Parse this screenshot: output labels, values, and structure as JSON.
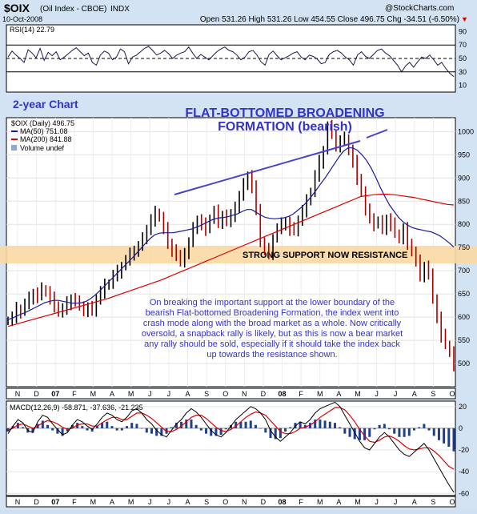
{
  "header": {
    "symbol": "$OIX",
    "name": "(Oil Index - CBOE)",
    "exchange": "INDX",
    "date": "10-Oct-2008",
    "ohlc": "Open 531.26  High 531.26  Low 454.55  Close 496.75  Chg -34.51 (-6.50%)",
    "watermark": "@StockCharts.com",
    "change_down_glyph": "▼"
  },
  "rsi_panel": {
    "legend": "RSI(14) 22.79",
    "levels": [
      70,
      50,
      30
    ],
    "ticks": [
      "90",
      "70",
      "50",
      "30",
      "10"
    ]
  },
  "price_panel": {
    "legend_price": "$OIX (Daily) 496.75",
    "legend_ma50": "MA(50) 751.08",
    "legend_ma200": "MA(200) 841.88",
    "legend_volume": "Volume undef",
    "label_2year": "2-year Chart",
    "title_line1": "FLAT-BOTTOMED BROADENING",
    "title_line2": "FORMATION (bearish)",
    "band_label": "STRONG SUPPORT NOW RESISTANCE",
    "commentary": [
      "On breaking the important support at the lower boundary of the",
      "bearish Flat-bottomed Broadening Formation, the index went into",
      "crash mode along with the broad market as a whole. Now critically",
      "oversold, a snapback rally is likely, but as this is now a bear market",
      "any rally should be sold, especially if it should take the index back",
      "up towards the resistance shown."
    ],
    "y_ticks": [
      "1000",
      "950",
      "900",
      "850",
      "800",
      "750",
      "700",
      "650",
      "600",
      "550",
      "500"
    ],
    "x_ticks": [
      "N",
      "D",
      "07",
      "F",
      "M",
      "A",
      "M",
      "J",
      "J",
      "A",
      "S",
      "O",
      "N",
      "D",
      "08",
      "F",
      "M",
      "A",
      "M",
      "J",
      "J",
      "A",
      "S",
      "O"
    ]
  },
  "macd_panel": {
    "legend": "MACD(12,26,9) -58.871, -37.636, -21.235",
    "y_ticks": [
      "20",
      "0",
      "-20",
      "-40",
      "-60"
    ],
    "x_ticks": [
      "N",
      "D",
      "07",
      "F",
      "M",
      "A",
      "M",
      "J",
      "J",
      "A",
      "S",
      "O",
      "N",
      "D",
      "08",
      "F",
      "M",
      "A",
      "M",
      "J",
      "J",
      "A",
      "S",
      "O"
    ]
  },
  "colors": {
    "price_bars": "#000000",
    "ma50": "#1a1a9a",
    "ma200": "#dd0000",
    "trendline": "#4444cc",
    "annotation_text": "#3333cc",
    "support_band": "#fbd8a3",
    "macd_line": "#000000",
    "macd_signal": "#dd0000",
    "macd_hist": "#1f3f8f",
    "panel_bg": "#ffffff",
    "frame_bg": "#d3e3f4"
  },
  "chart_data": [
    {
      "type": "line",
      "panel": "RSI(14)",
      "ylim": [
        0,
        100
      ],
      "series": [
        {
          "name": "RSI(14)",
          "values": [
            52,
            61,
            55,
            50,
            44,
            63,
            58,
            51,
            65,
            47,
            59,
            54,
            60,
            48,
            52,
            57,
            62,
            66,
            60,
            54,
            58,
            44,
            40,
            55,
            61,
            58,
            48,
            52,
            64,
            60,
            42,
            52,
            55,
            60,
            65,
            68,
            62,
            55,
            58,
            62,
            57,
            50,
            55,
            58,
            60,
            67,
            58,
            50,
            56,
            52,
            48,
            54,
            60,
            64,
            67,
            62,
            60,
            55,
            48,
            52,
            60,
            62,
            55,
            45,
            40,
            56,
            61,
            54,
            48,
            51,
            54,
            58,
            60,
            52,
            48,
            55,
            53,
            49,
            42,
            44,
            56,
            60,
            62,
            58,
            52,
            48,
            40,
            55,
            60,
            53,
            50,
            56,
            62,
            64,
            58,
            54,
            47,
            40,
            30,
            39,
            44,
            37,
            45,
            52,
            50,
            55,
            48,
            40,
            44,
            35,
            28,
            23
          ]
        }
      ]
    },
    {
      "type": "line",
      "panel": "price",
      "ylim": [
        450,
        1030
      ],
      "series": [
        {
          "name": "$OIX (Daily)",
          "values": [
            592,
            600,
            618,
            612,
            628,
            640,
            652,
            645,
            660,
            655,
            640,
            625,
            610,
            618,
            630,
            640,
            632,
            625,
            615,
            620,
            612,
            640,
            655,
            668,
            672,
            690,
            698,
            710,
            722,
            735,
            745,
            752,
            768,
            790,
            810,
            825,
            815,
            790,
            760,
            745,
            730,
            720,
            740,
            760,
            790,
            810,
            800,
            790,
            812,
            828,
            805,
            820,
            805,
            818,
            840,
            860,
            885,
            905,
            880,
            835,
            760,
            745,
            738,
            770,
            790,
            800,
            805,
            790,
            785,
            810,
            830,
            850,
            870,
            905,
            935,
            960,
            1010,
            995,
            970,
            980,
            985,
            960,
            935,
            900,
            870,
            830,
            815,
            800,
            805,
            790,
            812,
            800,
            780,
            770,
            790,
            760,
            740,
            720,
            690,
            710,
            690,
            640,
            600,
            560,
            540,
            525,
            496
          ]
        },
        {
          "name": "MA(50)",
          "values": [
            595,
            598,
            603,
            607,
            611,
            616,
            621,
            626,
            631,
            634,
            636,
            636,
            634,
            632,
            630,
            630,
            631,
            634,
            640,
            648,
            657,
            667,
            677,
            687,
            697,
            707,
            717,
            727,
            738,
            749,
            760,
            770,
            778,
            781,
            782,
            782,
            782,
            784,
            786,
            788,
            790,
            794,
            798,
            803,
            808,
            812,
            814,
            815,
            817,
            820,
            823,
            828,
            832,
            832,
            826,
            820,
            815,
            813,
            812,
            813,
            814,
            817,
            822,
            830,
            838,
            848,
            860,
            873,
            887,
            900,
            915,
            930,
            945,
            958,
            965,
            965,
            960,
            950,
            938,
            922,
            902,
            880,
            860,
            842,
            828,
            815,
            805,
            798,
            793,
            790,
            788,
            786,
            784,
            780,
            775,
            768,
            760,
            751
          ]
        },
        {
          "name": "MA(200)",
          "values": [
            580,
            584,
            588,
            592,
            596,
            600,
            604,
            608,
            612,
            616,
            620,
            624,
            628,
            632,
            636,
            640,
            645,
            650,
            655,
            660,
            665,
            670,
            675,
            680,
            686,
            692,
            698,
            704,
            710,
            716,
            722,
            728,
            734,
            740,
            746,
            752,
            758,
            764,
            770,
            776,
            782,
            788,
            794,
            800,
            806,
            812,
            818,
            824,
            830,
            836,
            842,
            848,
            854,
            860,
            862,
            864,
            865,
            865,
            864,
            862,
            860,
            858,
            855,
            852,
            849,
            846,
            843,
            841.88
          ]
        }
      ]
    },
    {
      "type": "line",
      "panel": "MACD(12,26,9)",
      "ylim": [
        -62,
        25
      ],
      "series": [
        {
          "name": "MACD",
          "values": [
            -5,
            2,
            8,
            5,
            -2,
            -4,
            6,
            12,
            10,
            4,
            -1,
            -6,
            -4,
            3,
            8,
            6,
            2,
            -1,
            4,
            10,
            14,
            12,
            8,
            6,
            10,
            16,
            18,
            14,
            8,
            4,
            -2,
            -6,
            -8,
            -2,
            4,
            8,
            14,
            18,
            15,
            10,
            4,
            -2,
            -6,
            -8,
            -4,
            2,
            8,
            12,
            16,
            20,
            18,
            14,
            8,
            -2,
            -8,
            -12,
            -8,
            -4,
            2,
            6,
            4,
            8,
            14,
            18,
            20,
            22,
            24,
            20,
            12,
            4,
            -4,
            -12,
            -18,
            -20,
            -14,
            -8,
            -4,
            -8,
            -14,
            -20,
            -24,
            -26,
            -22,
            -18,
            -14,
            -20,
            -28,
            -36,
            -44,
            -52,
            -58.871
          ]
        },
        {
          "name": "Signal",
          "values": [
            -2,
            0,
            3,
            4,
            2,
            0,
            2,
            5,
            7,
            6,
            4,
            1,
            -1,
            0,
            3,
            4,
            4,
            2,
            2,
            5,
            8,
            10,
            10,
            8,
            8,
            11,
            14,
            14,
            12,
            9,
            5,
            1,
            -3,
            -3,
            -1,
            2,
            6,
            10,
            12,
            12,
            9,
            5,
            1,
            -2,
            -3,
            -1,
            2,
            6,
            10,
            13,
            15,
            14,
            12,
            7,
            2,
            -3,
            -5,
            -5,
            -3,
            0,
            1,
            3,
            6,
            10,
            13,
            16,
            19,
            19,
            17,
            12,
            6,
            -1,
            -7,
            -12,
            -13,
            -11,
            -8,
            -7,
            -9,
            -12,
            -16,
            -19,
            -20,
            -19,
            -18,
            -18,
            -21,
            -25,
            -30,
            -35,
            -37.636
          ]
        },
        {
          "name": "Histogram",
          "values": [
            -3,
            2,
            5,
            1,
            -4,
            -4,
            4,
            7,
            3,
            -2,
            -5,
            -7,
            -3,
            3,
            5,
            2,
            -2,
            -3,
            2,
            5,
            6,
            2,
            -2,
            -2,
            2,
            5,
            4,
            0,
            -4,
            -5,
            -7,
            -7,
            -5,
            1,
            5,
            6,
            8,
            8,
            3,
            -2,
            -5,
            -7,
            -7,
            -6,
            -1,
            3,
            6,
            6,
            6,
            7,
            3,
            0,
            -4,
            -9,
            -10,
            -9,
            -3,
            1,
            5,
            6,
            3,
            5,
            8,
            8,
            7,
            6,
            5,
            1,
            -5,
            -8,
            -10,
            -11,
            -11,
            -8,
            -1,
            3,
            4,
            -1,
            -5,
            -8,
            -8,
            -7,
            -2,
            1,
            4,
            -2,
            -7,
            -11,
            -14,
            -17,
            -21.235
          ]
        }
      ]
    }
  ]
}
